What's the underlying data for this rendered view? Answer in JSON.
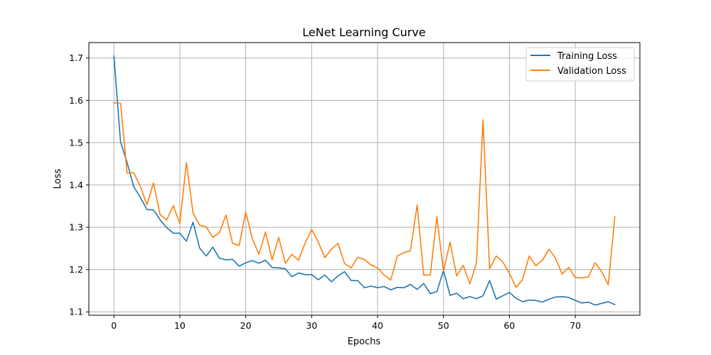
{
  "chart_data": {
    "type": "line",
    "title": "LeNet Learning Curve",
    "xlabel": "Epochs",
    "ylabel": "Loss",
    "xlim": [
      -3.8,
      79.8
    ],
    "ylim": [
      1.092,
      1.7365
    ],
    "xticks": [
      0,
      10,
      20,
      30,
      40,
      50,
      60,
      70
    ],
    "yticks": [
      1.1,
      1.2,
      1.3,
      1.4,
      1.5,
      1.6,
      1.7
    ],
    "xtick_labels": [
      "0",
      "10",
      "20",
      "30",
      "40",
      "50",
      "60",
      "70"
    ],
    "ytick_labels": [
      "1.1",
      "1.2",
      "1.3",
      "1.4",
      "1.5",
      "1.6",
      "1.7"
    ],
    "grid": true,
    "legend_position": "top-right",
    "x": [
      0,
      1,
      2,
      3,
      4,
      5,
      6,
      7,
      8,
      9,
      10,
      11,
      12,
      13,
      14,
      15,
      16,
      17,
      18,
      19,
      20,
      21,
      22,
      23,
      24,
      25,
      26,
      27,
      28,
      29,
      30,
      31,
      32,
      33,
      34,
      35,
      36,
      37,
      38,
      39,
      40,
      41,
      42,
      43,
      44,
      45,
      46,
      47,
      48,
      49,
      50,
      51,
      52,
      53,
      54,
      55,
      56,
      57,
      58,
      59,
      60,
      61,
      62,
      63,
      64,
      65,
      66,
      67,
      68,
      69,
      70,
      71,
      72,
      73,
      74,
      75,
      76
    ],
    "series": [
      {
        "name": "Training Loss",
        "color": "#1f77b4",
        "values": [
          1.705,
          1.502,
          1.453,
          1.396,
          1.371,
          1.342,
          1.341,
          1.318,
          1.299,
          1.286,
          1.286,
          1.267,
          1.312,
          1.251,
          1.232,
          1.253,
          1.227,
          1.223,
          1.224,
          1.208,
          1.216,
          1.221,
          1.215,
          1.222,
          1.205,
          1.204,
          1.202,
          1.183,
          1.192,
          1.188,
          1.188,
          1.176,
          1.187,
          1.171,
          1.185,
          1.195,
          1.174,
          1.174,
          1.157,
          1.161,
          1.157,
          1.16,
          1.152,
          1.158,
          1.157,
          1.165,
          1.153,
          1.167,
          1.143,
          1.148,
          1.198,
          1.139,
          1.144,
          1.131,
          1.136,
          1.131,
          1.138,
          1.174,
          1.13,
          1.138,
          1.146,
          1.132,
          1.124,
          1.128,
          1.127,
          1.123,
          1.13,
          1.135,
          1.136,
          1.134,
          1.127,
          1.121,
          1.123,
          1.116,
          1.12,
          1.124,
          1.117
        ]
      },
      {
        "name": "Validation Loss",
        "color": "#ff7f0e",
        "values": [
          1.594,
          1.593,
          1.428,
          1.429,
          1.397,
          1.353,
          1.405,
          1.33,
          1.317,
          1.351,
          1.309,
          1.453,
          1.334,
          1.305,
          1.301,
          1.276,
          1.287,
          1.329,
          1.262,
          1.257,
          1.336,
          1.273,
          1.236,
          1.289,
          1.223,
          1.276,
          1.215,
          1.236,
          1.222,
          1.262,
          1.295,
          1.265,
          1.228,
          1.248,
          1.262,
          1.214,
          1.204,
          1.229,
          1.224,
          1.211,
          1.204,
          1.187,
          1.175,
          1.232,
          1.24,
          1.245,
          1.353,
          1.187,
          1.187,
          1.325,
          1.196,
          1.265,
          1.185,
          1.21,
          1.166,
          1.215,
          1.554,
          1.202,
          1.232,
          1.218,
          1.191,
          1.158,
          1.176,
          1.232,
          1.209,
          1.222,
          1.248,
          1.227,
          1.189,
          1.205,
          1.181,
          1.18,
          1.183,
          1.216,
          1.195,
          1.164,
          1.325
        ]
      }
    ]
  }
}
